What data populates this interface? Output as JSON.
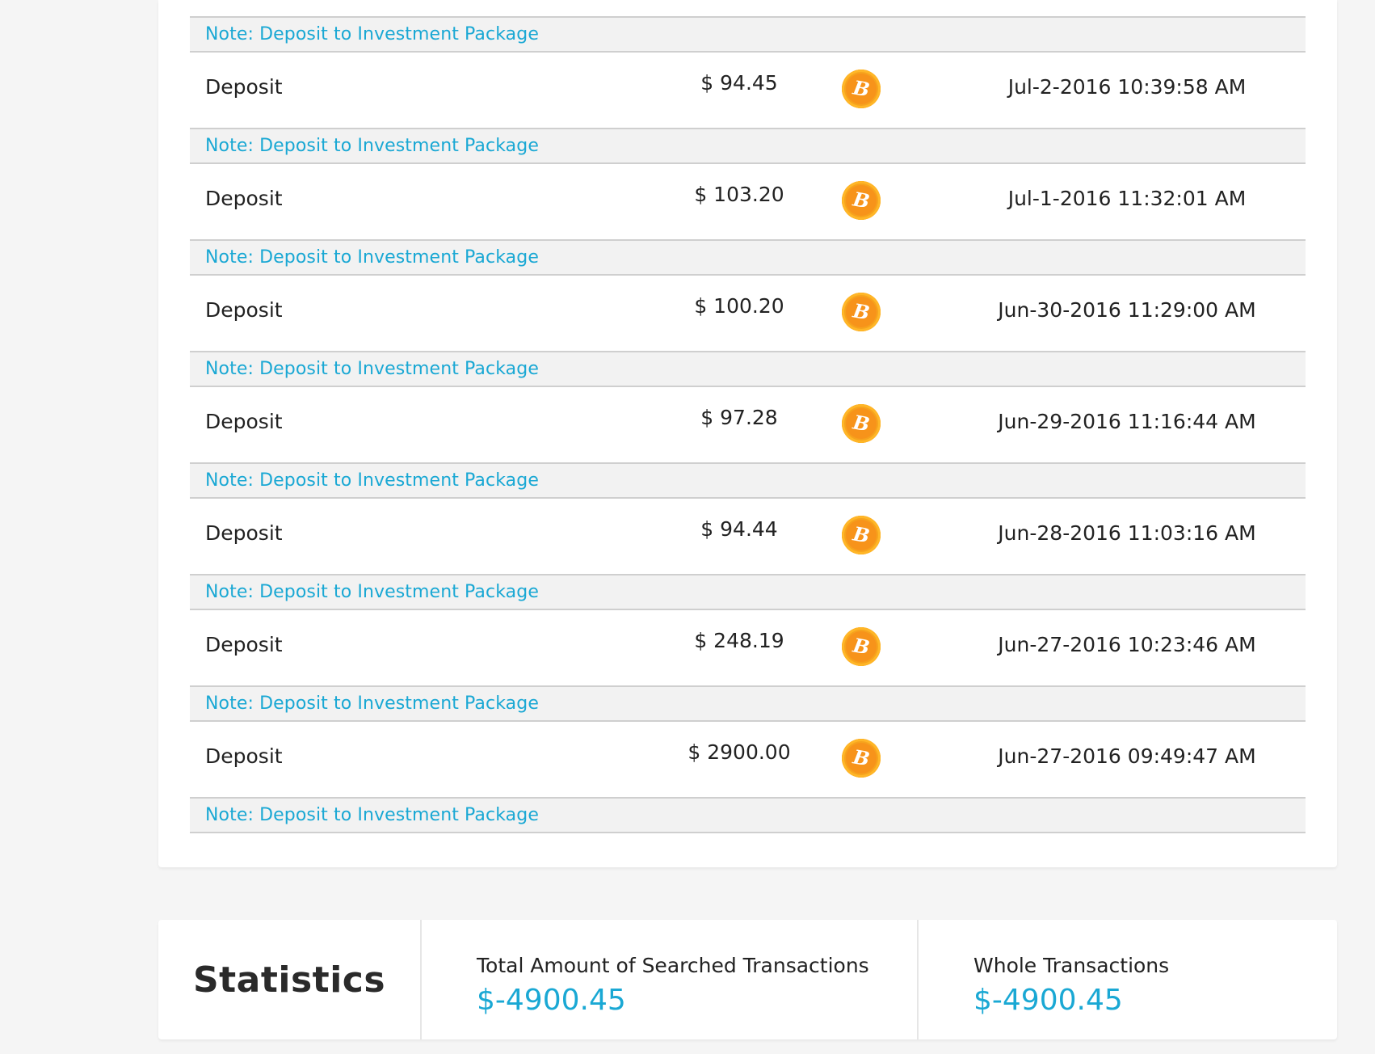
{
  "transactions": {
    "top_note": "Note: Deposit to Investment Package",
    "rows": [
      {
        "type": "Deposit",
        "amount": "$ 94.45",
        "currency_icon": "bitcoin-icon",
        "date": "Jul-2-2016 10:39:58 AM",
        "note": "Note: Deposit to Investment Package"
      },
      {
        "type": "Deposit",
        "amount": "$ 103.20",
        "currency_icon": "bitcoin-icon",
        "date": "Jul-1-2016 11:32:01 AM",
        "note": "Note: Deposit to Investment Package"
      },
      {
        "type": "Deposit",
        "amount": "$ 100.20",
        "currency_icon": "bitcoin-icon",
        "date": "Jun-30-2016 11:29:00 AM",
        "note": "Note: Deposit to Investment Package"
      },
      {
        "type": "Deposit",
        "amount": "$ 97.28",
        "currency_icon": "bitcoin-icon",
        "date": "Jun-29-2016 11:16:44 AM",
        "note": "Note: Deposit to Investment Package"
      },
      {
        "type": "Deposit",
        "amount": "$ 94.44",
        "currency_icon": "bitcoin-icon",
        "date": "Jun-28-2016 11:03:16 AM",
        "note": "Note: Deposit to Investment Package"
      },
      {
        "type": "Deposit",
        "amount": "$ 248.19",
        "currency_icon": "bitcoin-icon",
        "date": "Jun-27-2016 10:23:46 AM",
        "note": "Note: Deposit to Investment Package"
      },
      {
        "type": "Deposit",
        "amount": "$ 2900.00",
        "currency_icon": "bitcoin-icon",
        "date": "Jun-27-2016 09:49:47 AM",
        "note": "Note: Deposit to Investment Package"
      }
    ]
  },
  "statistics": {
    "title": "Statistics",
    "searched_label": "Total Amount of Searched Transactions",
    "searched_value": "$-4900.45",
    "whole_label": "Whole Transactions",
    "whole_value": "$-4900.45"
  },
  "colors": {
    "accent": "#1aa8d4",
    "bitcoin": "#f7931a",
    "note_background": "#f2f2f2",
    "page_background": "#f5f5f5"
  },
  "icons": {
    "bitcoin_glyph": "B"
  }
}
